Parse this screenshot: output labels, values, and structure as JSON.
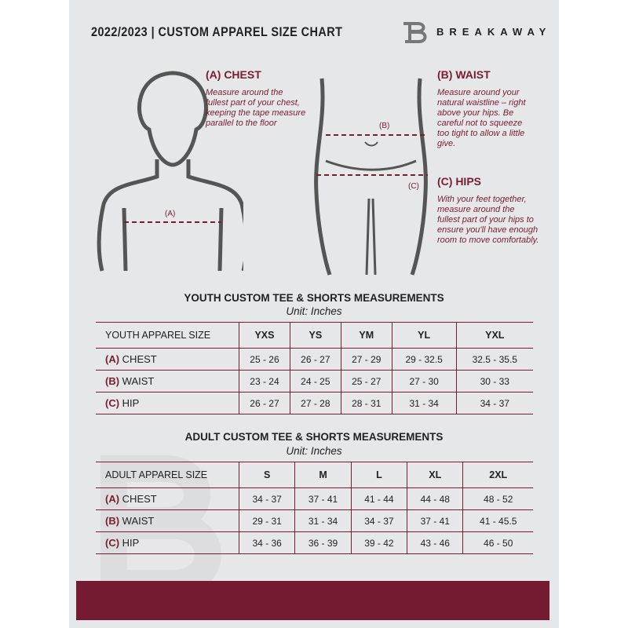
{
  "header": {
    "title": "2022/2023 | CUSTOM APPAREL SIZE CHART",
    "brand": "BREAKAWAY"
  },
  "colors": {
    "accent": "#741b31",
    "background": "#e6e7e8"
  },
  "chest": {
    "heading": "(A) CHEST",
    "text": "Measure around the fullest part of your chest, keeping the tape measure parallel to the floor",
    "marker": "(A)"
  },
  "waist": {
    "heading": "(B) WAIST",
    "text": "Measure around your natural waistline – right above your hips. Be careful not to squeeze too tight to allow a little give.",
    "marker": "(B)"
  },
  "hips": {
    "heading": "(C) HIPS",
    "text": "With your feet together, measure around the fullest part of your hips to ensure you'll have enough room to move comfortably.",
    "marker": "(C)"
  },
  "youth": {
    "title": "YOUTH CUSTOM TEE & SHORTS MEASUREMENTS",
    "unit": "Unit: Inches",
    "header": "YOUTH APPAREL SIZE",
    "sizes": [
      "YXS",
      "YS",
      "YM",
      "YL",
      "YXL"
    ],
    "rows": [
      {
        "label": "(A)",
        "name": "CHEST",
        "values": [
          "25 - 26",
          "26 - 27",
          "27 - 29",
          "29 - 32.5",
          "32.5 - 35.5"
        ]
      },
      {
        "label": "(B)",
        "name": "WAIST",
        "values": [
          "23 - 24",
          "24 - 25",
          "25 - 27",
          "27 - 30",
          "30 - 33"
        ]
      },
      {
        "label": "(C)",
        "name": "HIP",
        "values": [
          "26 - 27",
          "27 - 28",
          "28 - 31",
          "31 - 34",
          "34 - 37"
        ]
      }
    ]
  },
  "adult": {
    "title": "ADULT CUSTOM TEE & SHORTS MEASUREMENTS",
    "unit": "Unit: Inches",
    "header": "ADULT APPAREL SIZE",
    "sizes": [
      "S",
      "M",
      "L",
      "XL",
      "2XL"
    ],
    "rows": [
      {
        "label": "(A)",
        "name": "CHEST",
        "values": [
          "34 - 37",
          "37 - 41",
          "41 - 44",
          "44 - 48",
          "48 - 52"
        ]
      },
      {
        "label": "(B)",
        "name": "WAIST",
        "values": [
          "29 - 31",
          "31 - 34",
          "34 - 37",
          "37 - 41",
          "41 - 45.5"
        ]
      },
      {
        "label": "(C)",
        "name": "HIP",
        "values": [
          "34 - 36",
          "36 - 39",
          "39 - 42",
          "43 - 46",
          "46 - 50"
        ]
      }
    ]
  }
}
